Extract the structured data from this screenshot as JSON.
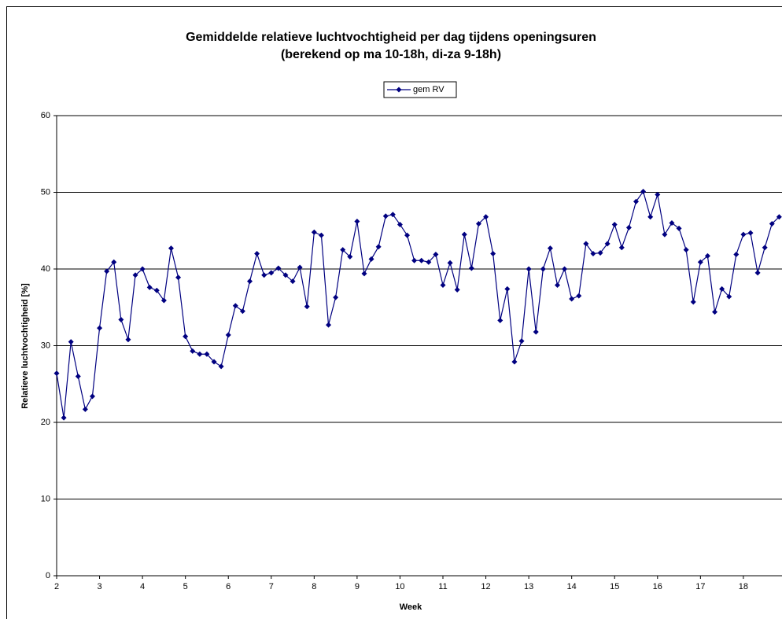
{
  "chart_data": {
    "type": "line",
    "title": "Gemiddelde relatieve luchtvochtigheid per dag tijdens openingsuren",
    "subtitle": "(berekend op ma 10-18h, di-za 9-18h)",
    "x_label": "Week",
    "y_label": "Relatieve luchtvochtigheid [%]",
    "x": [
      2,
      2.1667,
      2.3333,
      2.5,
      2.6667,
      2.8333,
      3,
      3.1667,
      3.3333,
      3.5,
      3.6667,
      3.8333,
      4,
      4.1667,
      4.3333,
      4.5,
      4.6667,
      4.8333,
      5,
      5.1667,
      5.3333,
      5.5,
      5.6667,
      5.8333,
      6,
      6.1667,
      6.3333,
      6.5,
      6.6667,
      6.8333,
      7,
      7.1667,
      7.3333,
      7.5,
      7.6667,
      7.8333,
      8,
      8.1667,
      8.3333,
      8.5,
      8.6667,
      8.8333,
      9,
      9.1667,
      9.3333,
      9.5,
      9.6667,
      9.8333,
      10,
      10.1667,
      10.3333,
      10.5,
      10.6667,
      10.8333,
      11,
      11.1667,
      11.3333,
      11.5,
      11.6667,
      11.8333,
      12,
      12.1667,
      12.3333,
      12.5,
      12.6667,
      12.8333,
      13,
      13.1667,
      13.3333,
      13.5,
      13.6667,
      13.8333,
      14,
      14.1667,
      14.3333,
      14.5,
      14.6667,
      14.8333,
      15,
      15.1667,
      15.3333,
      15.5,
      15.6667,
      15.8333,
      16,
      16.1667,
      16.3333,
      16.5,
      16.6667,
      16.8333,
      17,
      17.1667,
      17.3333,
      17.5,
      17.6667,
      17.8333,
      18,
      18.1667,
      18.3333,
      18.5,
      18.6667,
      18.8333
    ],
    "series": [
      {
        "name": "gem RV",
        "color": "#000080",
        "values": [
          26.4,
          20.6,
          30.5,
          26.0,
          21.7,
          23.4,
          32.3,
          39.7,
          40.9,
          33.4,
          30.8,
          39.2,
          40.0,
          37.6,
          37.2,
          35.9,
          42.7,
          38.9,
          31.2,
          29.3,
          28.9,
          28.9,
          27.9,
          27.3,
          31.4,
          35.2,
          34.5,
          38.4,
          42.0,
          39.2,
          39.5,
          40.1,
          39.2,
          38.4,
          40.2,
          35.1,
          44.8,
          44.4,
          32.7,
          36.3,
          42.5,
          41.6,
          46.2,
          39.4,
          41.3,
          42.9,
          46.9,
          47.1,
          45.8,
          44.4,
          41.1,
          41.1,
          40.9,
          41.9,
          37.9,
          40.8,
          37.3,
          44.5,
          40.1,
          45.9,
          46.8,
          42.0,
          33.3,
          37.4,
          27.9,
          30.6,
          40.0,
          31.8,
          40.0,
          42.7,
          37.9,
          40.0,
          36.1,
          36.5,
          43.3,
          42.0,
          42.1,
          43.3,
          45.8,
          42.8,
          45.4,
          48.8,
          50.1,
          46.8,
          49.7,
          44.5,
          46.0,
          45.3,
          42.5,
          35.7,
          40.9,
          41.7,
          34.4,
          37.4,
          36.4,
          41.9,
          44.5,
          44.7,
          39.5,
          42.8,
          45.9,
          46.8
        ]
      }
    ],
    "xlim": [
      2,
      18.9
    ],
    "xticks": [
      2,
      3,
      4,
      5,
      6,
      7,
      8,
      9,
      10,
      11,
      12,
      13,
      14,
      15,
      16,
      17,
      18
    ],
    "ylim": [
      0,
      60
    ],
    "yticks": [
      0,
      10,
      20,
      30,
      40,
      50,
      60
    ],
    "grid": true,
    "legend": "top"
  }
}
